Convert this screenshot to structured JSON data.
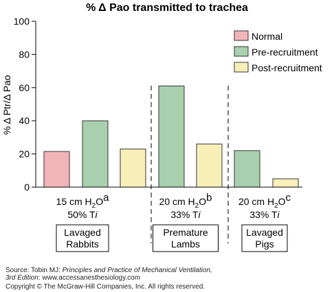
{
  "chart_data": {
    "type": "bar",
    "title": "% Δ Pao transmitted to trachea",
    "ylabel": "% Δ Ptr/Δ Pao",
    "ylim": [
      0,
      100
    ],
    "yticks": [
      0,
      20,
      40,
      60,
      80,
      100
    ],
    "series": [
      {
        "name": "Normal",
        "color": "#f2b5b7"
      },
      {
        "name": "Pre-recruitment",
        "color": "#a8d0ae"
      },
      {
        "name": "Post-recruitment",
        "color": "#f8efb8"
      }
    ],
    "groups": [
      {
        "pressure_label": "15 cm H",
        "pressure_sub": "2",
        "pressure_after": "O",
        "superscript": "a",
        "ti_label": "50% T",
        "ti_italic": "i",
        "animal_label": [
          "Lavaged",
          "Rabbits"
        ],
        "bars": [
          {
            "series": "Normal",
            "value": 21.5
          },
          {
            "series": "Pre-recruitment",
            "value": 40
          },
          {
            "series": "Post-recruitment",
            "value": 23
          }
        ]
      },
      {
        "pressure_label": "20 cm H",
        "pressure_sub": "2",
        "pressure_after": "O",
        "superscript": "b",
        "ti_label": "33% T",
        "ti_italic": "i",
        "animal_label": [
          "Premature",
          "Lambs"
        ],
        "bars": [
          {
            "series": "Pre-recruitment",
            "value": 61
          },
          {
            "series": "Post-recruitment",
            "value": 26
          }
        ]
      },
      {
        "pressure_label": "20 cm H",
        "pressure_sub": "2",
        "pressure_after": "O",
        "superscript": "c",
        "ti_label": "33% T",
        "ti_italic": "i",
        "animal_label": [
          "Lavaged",
          "Pigs"
        ],
        "bars": [
          {
            "series": "Pre-recruitment",
            "value": 22
          },
          {
            "series": "Post-recruitment",
            "value": 5
          }
        ]
      }
    ],
    "legend_position": "top-right",
    "grid": false
  },
  "source": {
    "prefix": "Source: Tobin MJ: ",
    "book": "Principles and Practice of Mechanical Ventilation,",
    "edition": "3rd Edition",
    "url_suffix": ": www.accessanesthesiology.com",
    "copyright": "Copyright © The McGraw-Hill Companies, Inc. All rights reserved."
  }
}
